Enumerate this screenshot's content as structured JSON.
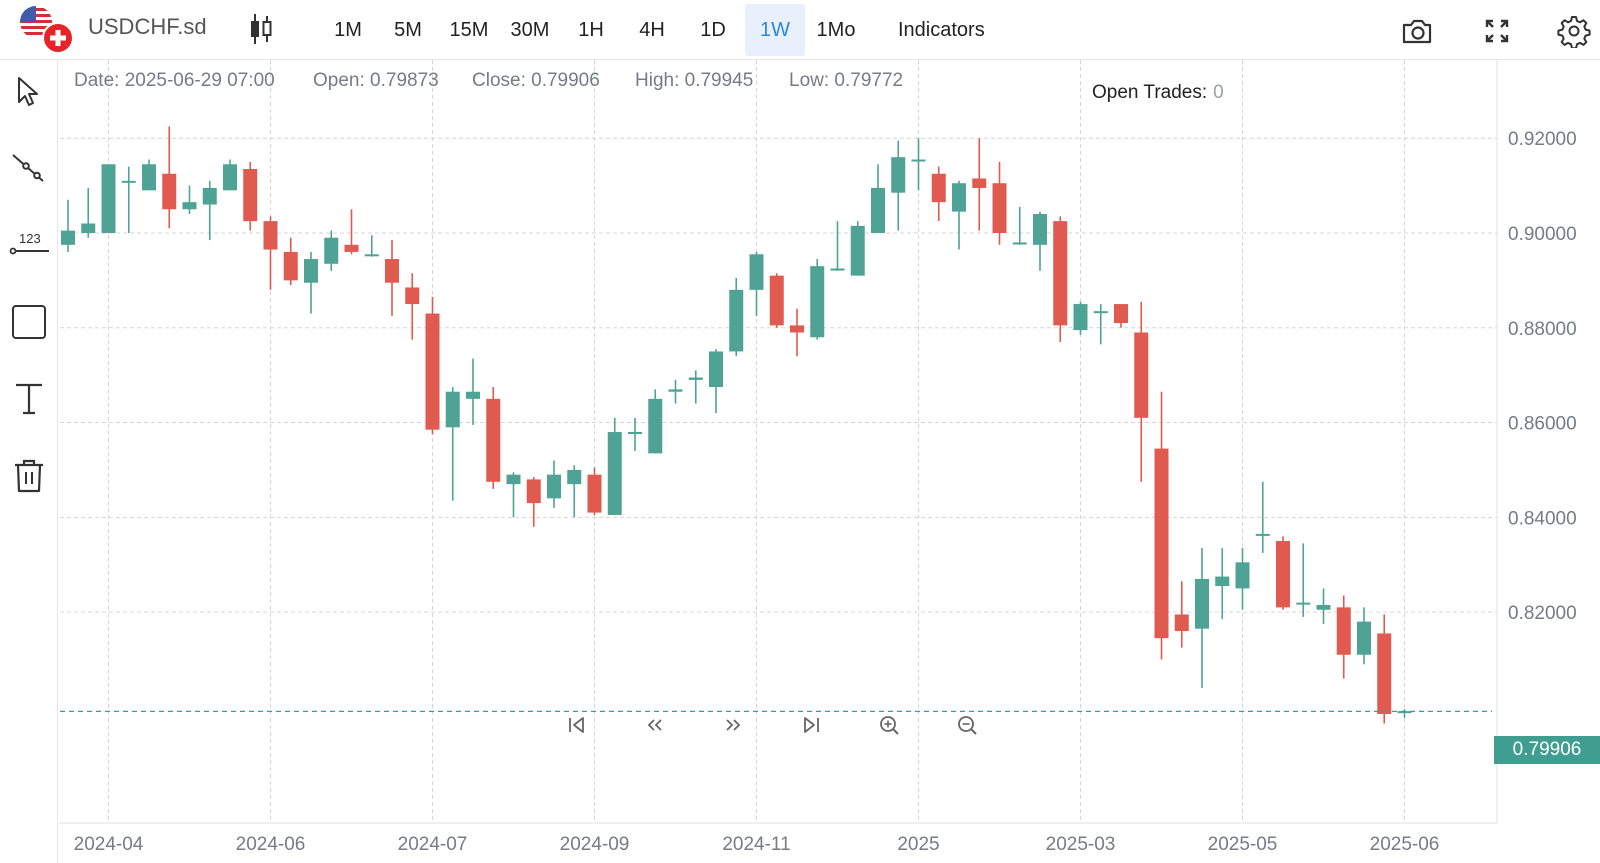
{
  "header": {
    "symbol": "USDCHF.sd",
    "timeframes": [
      "1M",
      "5M",
      "15M",
      "30M",
      "1H",
      "4H",
      "1D",
      "1W",
      "1Mo"
    ],
    "active_timeframe": "1W",
    "indicators_label": "Indicators"
  },
  "ohlc": {
    "date": "Date: 2025-06-29 07:00",
    "open": "Open: 0.79873",
    "close": "Close: 0.79906",
    "high": "High: 0.79945",
    "low": "Low: 0.79772"
  },
  "open_trades": {
    "label": "Open Trades:",
    "value": "0"
  },
  "left_tools": [
    "cursor-icon",
    "trend-line-icon",
    "price-label-icon",
    "rectangle-icon",
    "text-icon",
    "trash-icon"
  ],
  "nav_controls": [
    "jump-start-icon",
    "scroll-left-icon",
    "scroll-right-icon",
    "jump-end-icon",
    "zoom-in-icon",
    "zoom-out-icon"
  ],
  "colors": {
    "up": "#4fa394",
    "down": "#e05a50",
    "grid": "#d6d6d6",
    "current_price": "#3f9e8f"
  },
  "chart_data": {
    "type": "candlestick",
    "x_ticks": [
      "2024-04",
      "2024-06",
      "2024-07",
      "2024-09",
      "2024-11",
      "2025",
      "2025-03",
      "2025-05",
      "2025-06"
    ],
    "y_ticks": [
      "0.92000",
      "0.90000",
      "0.88000",
      "0.86000",
      "0.84000",
      "0.82000"
    ],
    "ylim": [
      0.7755,
      0.9365
    ],
    "current_price": "0.79906",
    "candles": [
      [
        0.8975,
        0.9005,
        0.907,
        0.896
      ],
      [
        0.9,
        0.902,
        0.9095,
        0.899
      ],
      [
        0.9,
        0.9145,
        0.9145,
        0.9
      ],
      [
        0.911,
        0.911,
        0.914,
        0.9
      ],
      [
        0.909,
        0.9145,
        0.9155,
        0.909
      ],
      [
        0.9125,
        0.905,
        0.9225,
        0.901
      ],
      [
        0.905,
        0.9065,
        0.91,
        0.904
      ],
      [
        0.906,
        0.9095,
        0.911,
        0.8985
      ],
      [
        0.909,
        0.9145,
        0.9155,
        0.909
      ],
      [
        0.9135,
        0.9025,
        0.915,
        0.9005
      ],
      [
        0.9025,
        0.8965,
        0.9035,
        0.888
      ],
      [
        0.896,
        0.89,
        0.899,
        0.889
      ],
      [
        0.8895,
        0.8945,
        0.896,
        0.883
      ],
      [
        0.8935,
        0.899,
        0.9005,
        0.892
      ],
      [
        0.8975,
        0.896,
        0.905,
        0.8955
      ],
      [
        0.8955,
        0.8955,
        0.8995,
        0.895
      ],
      [
        0.8945,
        0.8895,
        0.8985,
        0.8825
      ],
      [
        0.8885,
        0.885,
        0.8915,
        0.8775
      ],
      [
        0.883,
        0.8585,
        0.8865,
        0.8575
      ],
      [
        0.859,
        0.8665,
        0.8675,
        0.8435
      ],
      [
        0.865,
        0.8665,
        0.8735,
        0.8595
      ],
      [
        0.865,
        0.8475,
        0.8675,
        0.846
      ],
      [
        0.847,
        0.849,
        0.8495,
        0.84
      ],
      [
        0.848,
        0.843,
        0.8485,
        0.838
      ],
      [
        0.844,
        0.849,
        0.852,
        0.842
      ],
      [
        0.847,
        0.85,
        0.851,
        0.84
      ],
      [
        0.849,
        0.841,
        0.8505,
        0.8405
      ],
      [
        0.8405,
        0.858,
        0.861,
        0.8405
      ],
      [
        0.858,
        0.858,
        0.861,
        0.854
      ],
      [
        0.8535,
        0.865,
        0.867,
        0.8535
      ],
      [
        0.8665,
        0.867,
        0.869,
        0.864
      ],
      [
        0.869,
        0.8695,
        0.871,
        0.864
      ],
      [
        0.8675,
        0.875,
        0.8755,
        0.862
      ],
      [
        0.875,
        0.888,
        0.8905,
        0.874
      ],
      [
        0.888,
        0.8955,
        0.896,
        0.8825
      ],
      [
        0.891,
        0.8805,
        0.8915,
        0.88
      ],
      [
        0.8805,
        0.879,
        0.884,
        0.874
      ],
      [
        0.878,
        0.893,
        0.8945,
        0.8775
      ],
      [
        0.8925,
        0.8925,
        0.9025,
        0.892
      ],
      [
        0.891,
        0.9015,
        0.9025,
        0.891
      ],
      [
        0.9,
        0.9095,
        0.9145,
        0.9
      ],
      [
        0.9085,
        0.916,
        0.9195,
        0.9005
      ],
      [
        0.9155,
        0.9155,
        0.92,
        0.909
      ],
      [
        0.9125,
        0.9065,
        0.914,
        0.9025
      ],
      [
        0.9045,
        0.9105,
        0.911,
        0.8965
      ],
      [
        0.9115,
        0.9095,
        0.92,
        0.9005
      ],
      [
        0.9105,
        0.9,
        0.915,
        0.8975
      ],
      [
        0.898,
        0.898,
        0.9055,
        0.8975
      ],
      [
        0.8975,
        0.904,
        0.9045,
        0.892
      ],
      [
        0.9025,
        0.8805,
        0.9035,
        0.877
      ],
      [
        0.8795,
        0.885,
        0.8855,
        0.8785
      ],
      [
        0.8835,
        0.8835,
        0.885,
        0.8765
      ],
      [
        0.885,
        0.881,
        0.885,
        0.88
      ],
      [
        0.879,
        0.861,
        0.8855,
        0.8475
      ],
      [
        0.8545,
        0.8145,
        0.8665,
        0.81
      ],
      [
        0.8195,
        0.816,
        0.8265,
        0.8125
      ],
      [
        0.8165,
        0.827,
        0.8335,
        0.804
      ],
      [
        0.8255,
        0.8275,
        0.8335,
        0.8185
      ],
      [
        0.825,
        0.8305,
        0.8335,
        0.8205
      ],
      [
        0.8365,
        0.8365,
        0.8475,
        0.8325
      ],
      [
        0.835,
        0.821,
        0.836,
        0.8205
      ],
      [
        0.822,
        0.822,
        0.8345,
        0.819
      ],
      [
        0.8205,
        0.8215,
        0.825,
        0.8175
      ],
      [
        0.821,
        0.811,
        0.8235,
        0.806
      ],
      [
        0.811,
        0.818,
        0.821,
        0.809
      ],
      [
        0.8155,
        0.7985,
        0.8195,
        0.7965
      ],
      [
        0.7987,
        0.7991,
        0.7995,
        0.7977
      ]
    ]
  }
}
